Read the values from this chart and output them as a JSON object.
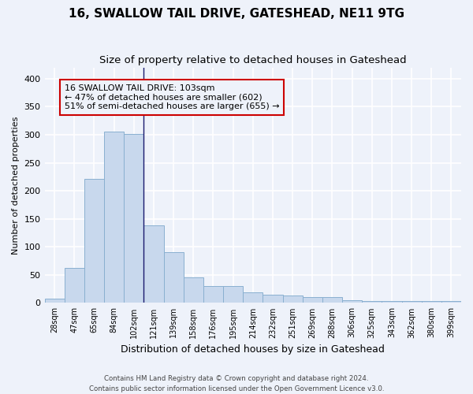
{
  "title1": "16, SWALLOW TAIL DRIVE, GATESHEAD, NE11 9TG",
  "title2": "Size of property relative to detached houses in Gateshead",
  "xlabel": "Distribution of detached houses by size in Gateshead",
  "ylabel": "Number of detached properties",
  "categories": [
    "28sqm",
    "47sqm",
    "65sqm",
    "84sqm",
    "102sqm",
    "121sqm",
    "139sqm",
    "158sqm",
    "176sqm",
    "195sqm",
    "214sqm",
    "232sqm",
    "251sqm",
    "269sqm",
    "288sqm",
    "306sqm",
    "325sqm",
    "343sqm",
    "362sqm",
    "380sqm",
    "399sqm"
  ],
  "values": [
    8,
    63,
    221,
    306,
    302,
    138,
    90,
    46,
    30,
    30,
    19,
    15,
    13,
    10,
    10,
    5,
    4,
    4,
    3,
    4,
    4
  ],
  "bar_color": "#c8d8ed",
  "bar_edge_color": "#8ab0d0",
  "vline_x_index": 4.5,
  "vline_color": "#1a1a6e",
  "annotation_box_text": "16 SWALLOW TAIL DRIVE: 103sqm\n← 47% of detached houses are smaller (602)\n51% of semi-detached houses are larger (655) →",
  "annotation_box_color": "#cc0000",
  "annotation_text_fontsize": 8.0,
  "ylim": [
    0,
    420
  ],
  "yticks": [
    0,
    50,
    100,
    150,
    200,
    250,
    300,
    350,
    400
  ],
  "footer1": "Contains HM Land Registry data © Crown copyright and database right 2024.",
  "footer2": "Contains public sector information licensed under the Open Government Licence v3.0.",
  "background_color": "#eef2fa",
  "grid_color": "#ffffff",
  "title1_fontsize": 11,
  "title2_fontsize": 9.5,
  "ylabel_fontsize": 8,
  "xlabel_fontsize": 9
}
